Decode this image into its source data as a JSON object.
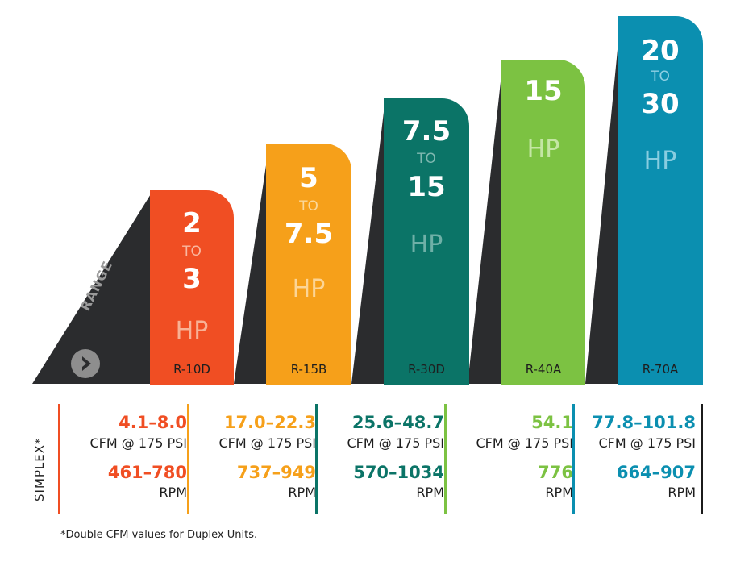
{
  "colors": {
    "shadow": "#2b2c2e",
    "logo_gray": "#8e8e8e",
    "models": [
      "#f04e23",
      "#f6a01a",
      "#0b7467",
      "#7cc242",
      "#0b8fb0"
    ],
    "footer_border_last": "#1b1b1b"
  },
  "brand": {
    "logo_text": "RANGE",
    "logo_icon": "arrow-right-circle-icon"
  },
  "models": [
    {
      "top": "2",
      "to": "TO",
      "bottom": "3",
      "hp": "HP",
      "name": "R-10D"
    },
    {
      "top": "5",
      "to": "TO",
      "bottom": "7.5",
      "hp": "HP",
      "name": "R-15B"
    },
    {
      "top": "7.5",
      "to": "TO",
      "bottom": "15",
      "hp": "HP",
      "name": "R-30D"
    },
    {
      "top": "15",
      "to": "",
      "bottom": "",
      "hp": "HP",
      "name": "R-40A"
    },
    {
      "top": "20",
      "to": "TO",
      "bottom": "30",
      "hp": "HP",
      "name": "R-70A"
    }
  ],
  "specs": {
    "label": "SIMPLEX*",
    "cfm_unit": "CFM @ 175 PSI",
    "rpm_unit": "RPM",
    "columns": [
      {
        "cfm": "4.1–8.0",
        "rpm": "461–780"
      },
      {
        "cfm": "17.0–22.3",
        "rpm": "737–949"
      },
      {
        "cfm": "25.6–48.7",
        "rpm": "570–1034"
      },
      {
        "cfm": "54.1",
        "rpm": "776"
      },
      {
        "cfm": "77.8–101.8",
        "rpm": "664–907"
      }
    ]
  },
  "footnote": "*Double CFM values for Duplex Units."
}
